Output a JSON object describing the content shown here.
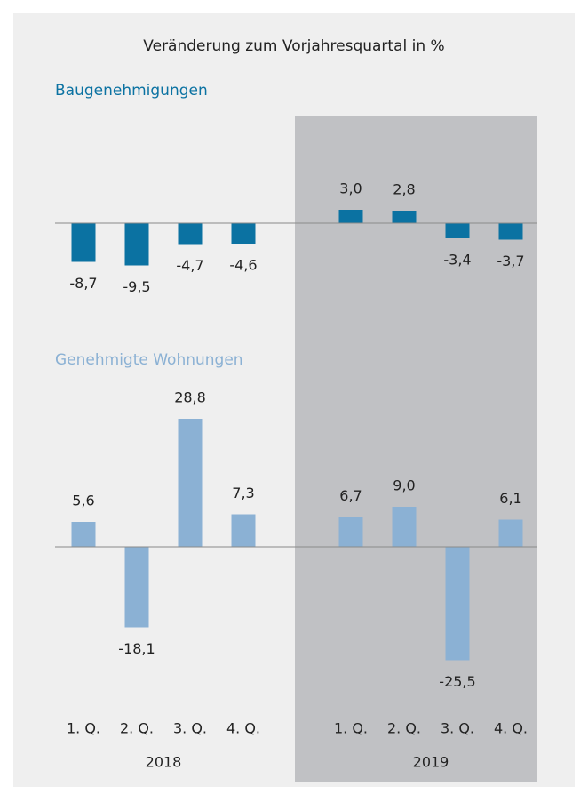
{
  "chart_data": [
    {
      "type": "bar",
      "title": "Veränderung zum Vorjahresquartal in %",
      "subtitle": "Baugenehmigungen",
      "color": "#0b72a2",
      "values": [
        -8.7,
        -9.5,
        -4.7,
        -4.6,
        3.0,
        2.8,
        -3.4,
        -3.7
      ],
      "value_labels": [
        "-8,7",
        "-9,5",
        "-4,7",
        "-4,6",
        "3,0",
        "2,8",
        "-3,4",
        "-3,7"
      ]
    },
    {
      "type": "bar",
      "subtitle": "Genehmigte Wohnungen",
      "color": "#8bb1d4",
      "categories": [
        "1. Q.",
        "2. Q.",
        "3. Q.",
        "4. Q.",
        "1. Q.",
        "2. Q.",
        "3. Q.",
        "4. Q."
      ],
      "groups": [
        "2018",
        "2019"
      ],
      "values": [
        5.6,
        -18.1,
        28.8,
        7.3,
        6.7,
        9.0,
        -25.5,
        6.1
      ],
      "value_labels": [
        "5,6",
        "-18,1",
        "28,8",
        "7,3",
        "6,7",
        "9,0",
        "-25,5",
        "6,1"
      ]
    }
  ]
}
